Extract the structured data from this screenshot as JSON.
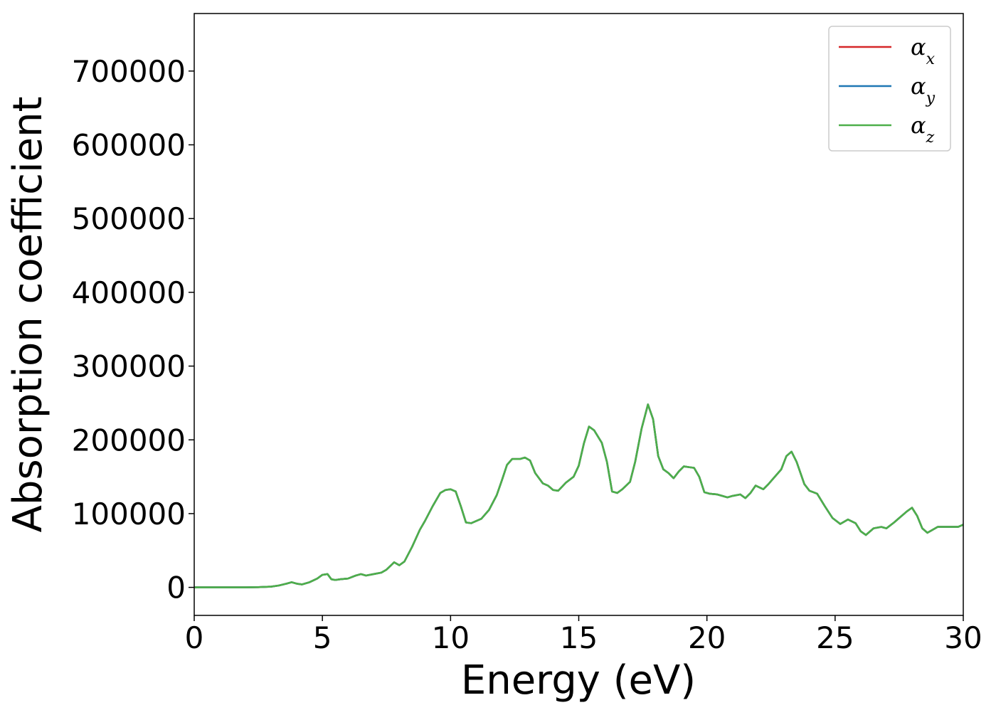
{
  "chart_data": {
    "type": "line",
    "title": "",
    "xlabel": "Energy (eV)",
    "ylabel": "Absorption coefficient",
    "xlim": [
      0,
      30
    ],
    "ylim": [
      -38000,
      778000
    ],
    "x_ticks": [
      0,
      5,
      10,
      15,
      20,
      25,
      30
    ],
    "y_ticks": [
      0,
      100000,
      200000,
      300000,
      400000,
      500000,
      600000,
      700000
    ],
    "grid": false,
    "legend_position": "top-right",
    "x": [
      0,
      1,
      2,
      2.5,
      3,
      3.3,
      3.6,
      3.8,
      4.0,
      4.2,
      4.5,
      4.8,
      5.0,
      5.2,
      5.35,
      5.5,
      5.7,
      6.0,
      6.3,
      6.5,
      6.7,
      7.0,
      7.3,
      7.5,
      7.8,
      8.0,
      8.2,
      8.5,
      8.8,
      9.0,
      9.3,
      9.6,
      9.8,
      10.0,
      10.2,
      10.4,
      10.6,
      10.8,
      11.0,
      11.2,
      11.5,
      11.8,
      12.0,
      12.2,
      12.4,
      12.7,
      12.9,
      13.1,
      13.3,
      13.6,
      13.8,
      14.0,
      14.2,
      14.5,
      14.8,
      15.0,
      15.2,
      15.4,
      15.6,
      15.9,
      16.1,
      16.3,
      16.5,
      16.7,
      17.0,
      17.2,
      17.45,
      17.7,
      17.9,
      18.1,
      18.3,
      18.5,
      18.7,
      18.9,
      19.1,
      19.3,
      19.5,
      19.7,
      19.9,
      20.1,
      20.4,
      20.8,
      21.0,
      21.3,
      21.5,
      21.7,
      21.9,
      22.2,
      22.4,
      22.6,
      22.9,
      23.1,
      23.3,
      23.5,
      23.8,
      24.0,
      24.3,
      24.6,
      24.9,
      25.2,
      25.5,
      25.8,
      26.0,
      26.2,
      26.5,
      26.8,
      27.0,
      27.3,
      27.6,
      27.8,
      28.0,
      28.2,
      28.4,
      28.6,
      28.8,
      29.0,
      29.3,
      29.6,
      29.8,
      30.0
    ],
    "series": [
      {
        "name": "α",
        "subscript": "x",
        "color": "#d62728",
        "values": [
          0,
          0,
          0,
          300,
          1000,
          2500,
          5000,
          7000,
          5000,
          4000,
          7000,
          12000,
          17000,
          18000,
          11000,
          10000,
          11000,
          12000,
          16000,
          18000,
          16000,
          18000,
          20000,
          24000,
          34000,
          30000,
          35000,
          55000,
          78000,
          90000,
          110000,
          128000,
          132000,
          133000,
          130000,
          110000,
          88000,
          87000,
          90000,
          93000,
          105000,
          125000,
          145000,
          166000,
          174000,
          174000,
          176000,
          172000,
          155000,
          141000,
          138000,
          132000,
          131000,
          142000,
          150000,
          165000,
          195000,
          218000,
          213000,
          196000,
          170000,
          130000,
          128000,
          133000,
          143000,
          170000,
          215000,
          248000,
          228000,
          178000,
          160000,
          155000,
          148000,
          157000,
          164000,
          163000,
          162000,
          150000,
          129000,
          127000,
          126000,
          122000,
          124000,
          126000,
          121000,
          128000,
          138000,
          133000,
          140000,
          148000,
          160000,
          178000,
          184000,
          170000,
          140000,
          131000,
          127000,
          110000,
          94000,
          86000,
          92000,
          87000,
          76000,
          71000,
          80000,
          82000,
          80000,
          88000,
          97000,
          103000,
          108000,
          97000,
          80000,
          74000,
          78000,
          82000,
          82000,
          82000,
          82000,
          85000
        ]
      },
      {
        "name": "α",
        "subscript": "y",
        "color": "#1f77b4",
        "values": [
          0,
          0,
          0,
          300,
          1000,
          2500,
          5000,
          7000,
          5000,
          4000,
          7000,
          12000,
          17000,
          18000,
          11000,
          10000,
          11000,
          12000,
          16000,
          18000,
          16000,
          18000,
          20000,
          24000,
          34000,
          30000,
          35000,
          55000,
          78000,
          90000,
          110000,
          128000,
          132000,
          133000,
          130000,
          110000,
          88000,
          87000,
          90000,
          93000,
          105000,
          125000,
          145000,
          166000,
          174000,
          174000,
          176000,
          172000,
          155000,
          141000,
          138000,
          132000,
          131000,
          142000,
          150000,
          165000,
          195000,
          218000,
          213000,
          196000,
          170000,
          130000,
          128000,
          133000,
          143000,
          170000,
          215000,
          248000,
          228000,
          178000,
          160000,
          155000,
          148000,
          157000,
          164000,
          163000,
          162000,
          150000,
          129000,
          127000,
          126000,
          122000,
          124000,
          126000,
          121000,
          128000,
          138000,
          133000,
          140000,
          148000,
          160000,
          178000,
          184000,
          170000,
          140000,
          131000,
          127000,
          110000,
          94000,
          86000,
          92000,
          87000,
          76000,
          71000,
          80000,
          82000,
          80000,
          88000,
          97000,
          103000,
          108000,
          97000,
          80000,
          74000,
          78000,
          82000,
          82000,
          82000,
          82000,
          85000
        ]
      },
      {
        "name": "α",
        "subscript": "z",
        "color": "#4daf4a",
        "values": [
          0,
          0,
          0,
          300,
          1000,
          2500,
          5000,
          7000,
          5000,
          4000,
          7000,
          12000,
          17000,
          18000,
          11000,
          10000,
          11000,
          12000,
          16000,
          18000,
          16000,
          18000,
          20000,
          24000,
          34000,
          30000,
          35000,
          55000,
          78000,
          90000,
          110000,
          128000,
          132000,
          133000,
          130000,
          110000,
          88000,
          87000,
          90000,
          93000,
          105000,
          125000,
          145000,
          166000,
          174000,
          174000,
          176000,
          172000,
          155000,
          141000,
          138000,
          132000,
          131000,
          142000,
          150000,
          165000,
          195000,
          218000,
          213000,
          196000,
          170000,
          130000,
          128000,
          133000,
          143000,
          170000,
          215000,
          248000,
          228000,
          178000,
          160000,
          155000,
          148000,
          157000,
          164000,
          163000,
          162000,
          150000,
          129000,
          127000,
          126000,
          122000,
          124000,
          126000,
          121000,
          128000,
          138000,
          133000,
          140000,
          148000,
          160000,
          178000,
          184000,
          170000,
          140000,
          131000,
          127000,
          110000,
          94000,
          86000,
          92000,
          87000,
          76000,
          71000,
          80000,
          82000,
          80000,
          88000,
          97000,
          103000,
          108000,
          97000,
          80000,
          74000,
          78000,
          82000,
          82000,
          82000,
          82000,
          85000
        ]
      }
    ]
  }
}
